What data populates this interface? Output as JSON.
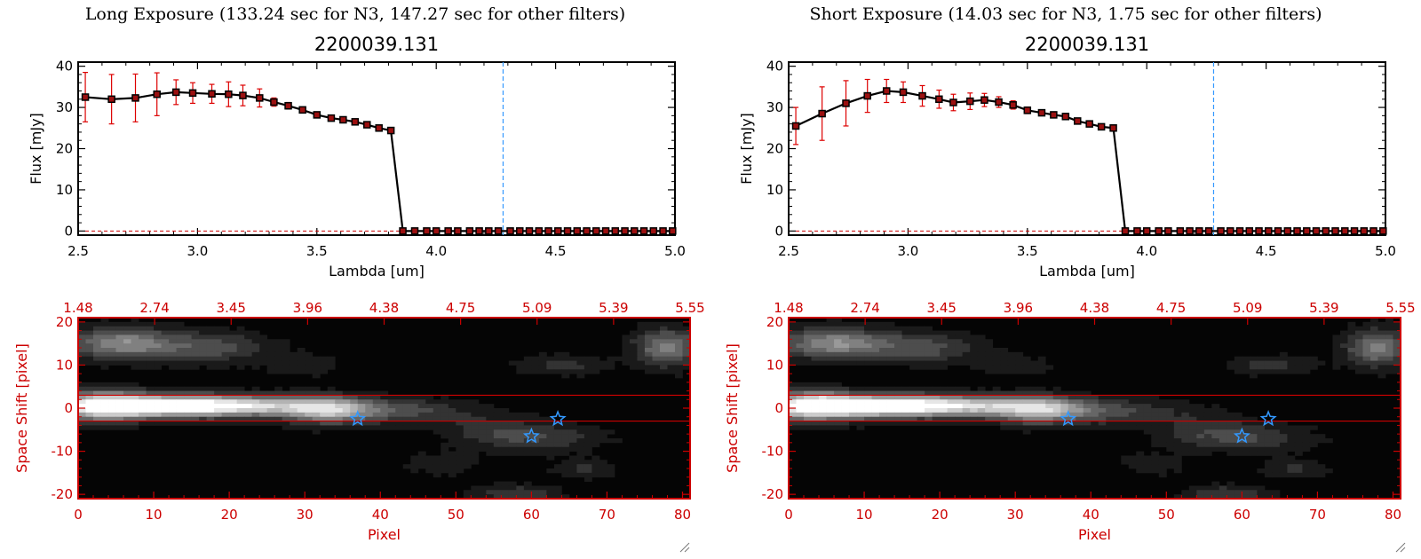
{
  "colors": {
    "frame": "#000000",
    "errorbar": "#dd0000",
    "marker_edge": "#000000",
    "marker_fill": "#9b1010",
    "cutoff_line": "#3399ff",
    "image_axes": "#cc0000",
    "region_box": "#cc0000",
    "star": "#3399ff",
    "zero_line": "#cc0000"
  },
  "icons": {
    "star": "star-icon",
    "resize": "resize-grip-icon"
  },
  "chart_data": [
    {
      "type": "line",
      "title": "Long Exposure (133.24 sec for N3, 147.27 sec for other filters)",
      "subtitle": "2200039.131",
      "xlabel": "Lambda [um]",
      "ylabel": "Flux [mJy]",
      "xlim": [
        2.5,
        5.0
      ],
      "ylim": [
        -1,
        41
      ],
      "xticks": [
        "2.5",
        "3.0",
        "3.5",
        "4.0",
        "4.5",
        "5.0"
      ],
      "yticks": [
        "0",
        "10",
        "20",
        "30",
        "40"
      ],
      "cutoff_x": 4.28,
      "series": [
        {
          "x": [
            2.53,
            2.64,
            2.74,
            2.83,
            2.91,
            2.98,
            3.06,
            3.13,
            3.19,
            3.26,
            3.32,
            3.38,
            3.44,
            3.5,
            3.56,
            3.61,
            3.66,
            3.71,
            3.76,
            3.81,
            3.86,
            3.91,
            3.96,
            4.0,
            4.05,
            4.09,
            4.14,
            4.18,
            4.22,
            4.26,
            4.31,
            4.35,
            4.39,
            4.43,
            4.47,
            4.51,
            4.55,
            4.59,
            4.63,
            4.67,
            4.71,
            4.75,
            4.79,
            4.83,
            4.87,
            4.91,
            4.95,
            4.99
          ],
          "y": [
            32.5,
            32.0,
            32.3,
            33.2,
            33.7,
            33.5,
            33.3,
            33.2,
            32.9,
            32.3,
            31.3,
            30.4,
            29.4,
            28.2,
            27.4,
            27.0,
            26.5,
            25.8,
            25.0,
            24.4,
            0,
            0,
            0,
            0,
            0,
            0,
            0,
            0,
            0,
            0,
            0,
            0,
            0,
            0,
            0,
            0,
            0,
            0,
            0,
            0,
            0,
            0,
            0,
            0,
            0,
            0,
            0,
            0
          ],
          "err": [
            6.0,
            6.0,
            5.8,
            5.2,
            3.0,
            2.5,
            2.3,
            3.0,
            2.5,
            2.2,
            1.0,
            0.8,
            0.7,
            0.6,
            0.5,
            0.4,
            0.4,
            0.4,
            0.4,
            0.4,
            0,
            0,
            0,
            0,
            0,
            0,
            0,
            0,
            0,
            0,
            0,
            0,
            0,
            0,
            0,
            0,
            0,
            0,
            0,
            0,
            0,
            0,
            0,
            0,
            0,
            0,
            0,
            0
          ]
        }
      ]
    },
    {
      "type": "line",
      "title": "Short Exposure (14.03 sec for N3, 1.75 sec for other filters)",
      "subtitle": "2200039.131",
      "xlabel": "Lambda [um]",
      "ylabel": "Flux [mJy]",
      "xlim": [
        2.5,
        5.0
      ],
      "ylim": [
        -1,
        41
      ],
      "xticks": [
        "2.5",
        "3.0",
        "3.5",
        "4.0",
        "4.5",
        "5.0"
      ],
      "yticks": [
        "0",
        "10",
        "20",
        "30",
        "40"
      ],
      "cutoff_x": 4.28,
      "series": [
        {
          "x": [
            2.53,
            2.64,
            2.74,
            2.83,
            2.91,
            2.98,
            3.06,
            3.13,
            3.19,
            3.26,
            3.32,
            3.38,
            3.44,
            3.5,
            3.56,
            3.61,
            3.66,
            3.71,
            3.76,
            3.81,
            3.86,
            3.91,
            3.96,
            4.0,
            4.05,
            4.09,
            4.14,
            4.18,
            4.22,
            4.26,
            4.31,
            4.35,
            4.39,
            4.43,
            4.47,
            4.51,
            4.55,
            4.59,
            4.63,
            4.67,
            4.71,
            4.75,
            4.79,
            4.83,
            4.87,
            4.91,
            4.95,
            4.99
          ],
          "y": [
            25.5,
            28.5,
            31.0,
            32.8,
            34.0,
            33.7,
            32.8,
            32.0,
            31.2,
            31.5,
            31.8,
            31.3,
            30.6,
            29.3,
            28.7,
            28.2,
            27.8,
            26.7,
            26.0,
            25.3,
            25.0,
            0,
            0,
            0,
            0,
            0,
            0,
            0,
            0,
            0,
            0,
            0,
            0,
            0,
            0,
            0,
            0,
            0,
            0,
            0,
            0,
            0,
            0,
            0,
            0,
            0,
            0,
            0
          ],
          "err": [
            4.5,
            6.5,
            5.5,
            4.0,
            2.8,
            2.5,
            2.5,
            2.2,
            2.0,
            2.0,
            1.6,
            1.3,
            1.0,
            0.8,
            0.6,
            0.5,
            0.5,
            0.5,
            0.4,
            0.4,
            0.4,
            0,
            0,
            0,
            0,
            0,
            0,
            0,
            0,
            0,
            0,
            0,
            0,
            0,
            0,
            0,
            0,
            0,
            0,
            0,
            0,
            0,
            0,
            0,
            0,
            0,
            0,
            0
          ]
        }
      ]
    },
    {
      "type": "heatmap",
      "xlabel": "Pixel",
      "ylabel": "Space Shift [pixel]",
      "xlim": [
        0,
        81
      ],
      "ylim": [
        -21,
        21
      ],
      "xticks": [
        "0",
        "10",
        "20",
        "30",
        "40",
        "50",
        "60",
        "70",
        "80"
      ],
      "yticks": [
        "-20",
        "-10",
        "0",
        "10",
        "20"
      ],
      "top_axis_ticks": [
        "1.48",
        "2.74",
        "3.45",
        "3.96",
        "4.38",
        "4.75",
        "5.09",
        "5.39",
        "5.55"
      ],
      "region_y": [
        -3,
        3
      ],
      "stars": [
        {
          "x": 37,
          "y": -2.5
        },
        {
          "x": 63.5,
          "y": -2.5
        },
        {
          "x": 60,
          "y": -6.5
        }
      ]
    },
    {
      "type": "heatmap",
      "xlabel": "Pixel",
      "ylabel": "Space Shift [pixel]",
      "xlim": [
        0,
        81
      ],
      "ylim": [
        -21,
        21
      ],
      "xticks": [
        "0",
        "10",
        "20",
        "30",
        "40",
        "50",
        "60",
        "70",
        "80"
      ],
      "yticks": [
        "-20",
        "-10",
        "0",
        "10",
        "20"
      ],
      "top_axis_ticks": [
        "1.48",
        "2.74",
        "3.45",
        "3.96",
        "4.38",
        "4.75",
        "5.09",
        "5.39",
        "5.55"
      ],
      "region_y": [
        -3,
        3
      ],
      "stars": [
        {
          "x": 37,
          "y": -2.5
        },
        {
          "x": 63.5,
          "y": -2.5
        },
        {
          "x": 60,
          "y": -6.5
        }
      ]
    }
  ]
}
